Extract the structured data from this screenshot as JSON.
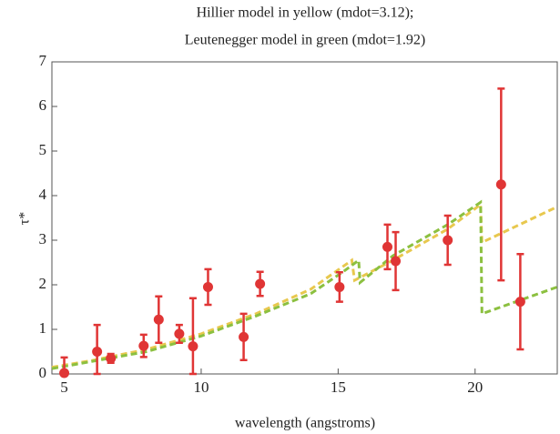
{
  "chart_data": {
    "type": "scatter",
    "title": "Hillier model in yellow (mdot=3.12);",
    "subtitle": "Leutenegger model in green (mdot=1.92)",
    "x_label": "wavelength (angstroms)",
    "y_label": "τ*",
    "xlim": [
      4.55,
      23
    ],
    "ylim": [
      0,
      7
    ],
    "xticks": [
      5,
      10,
      15,
      20
    ],
    "yticks": [
      0,
      1,
      2,
      3,
      4,
      5,
      6,
      7
    ],
    "series": [
      {
        "type": "line",
        "color": "#e8c84e",
        "x": [
          4.55,
          6,
          8,
          10,
          12,
          14,
          15.5,
          15.6,
          17,
          19,
          20.2,
          20.25,
          23
        ],
        "values": [
          0.15,
          0.3,
          0.55,
          0.9,
          1.35,
          1.9,
          2.55,
          2.1,
          2.55,
          3.25,
          3.8,
          2.95,
          3.75
        ]
      },
      {
        "type": "line",
        "color": "#8cc040",
        "x": [
          4.55,
          6,
          8,
          10,
          12,
          14,
          15.2,
          15.75,
          15.8,
          17,
          19,
          20.2,
          20.25,
          23
        ],
        "values": [
          0.12,
          0.28,
          0.5,
          0.85,
          1.3,
          1.8,
          2.3,
          2.55,
          2.05,
          2.65,
          3.35,
          3.85,
          1.35,
          1.95
        ]
      },
      {
        "type": "errorbar",
        "color": "#e03535",
        "x": [
          5.0,
          6.2,
          6.7,
          7.9,
          8.45,
          9.2,
          9.7,
          10.25,
          11.55,
          12.15,
          15.05,
          16.8,
          17.1,
          19.0,
          20.95,
          21.65
        ],
        "values": [
          0.02,
          0.5,
          0.35,
          0.63,
          1.22,
          0.9,
          0.62,
          1.95,
          0.83,
          2.02,
          1.95,
          2.85,
          2.53,
          3.0,
          4.25,
          1.62
        ],
        "errors": [
          0.35,
          0.6,
          0.1,
          0.25,
          0.52,
          0.2,
          1.08,
          0.4,
          0.52,
          0.27,
          0.33,
          0.5,
          0.65,
          0.55,
          2.15,
          1.07
        ]
      }
    ]
  }
}
